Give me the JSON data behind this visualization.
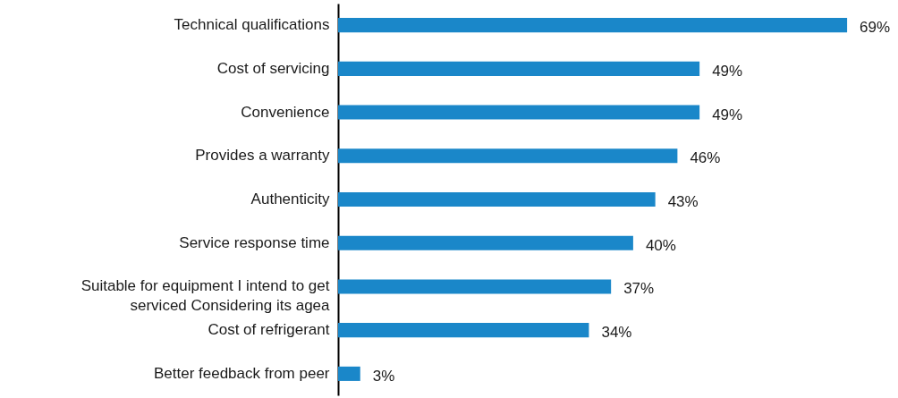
{
  "chart_data": {
    "type": "bar",
    "orientation": "horizontal",
    "categories": [
      "Technical qualifications",
      "Cost of servicing",
      "Convenience",
      "Provides a warranty",
      "Authenticity",
      "Service response time",
      "Suitable for equipment I intend to get serviced Considering its agea",
      "Cost of refrigerant",
      "Better feedback from peer"
    ],
    "values": [
      69,
      49,
      49,
      46,
      43,
      40,
      37,
      34,
      3
    ],
    "value_labels": [
      "69%",
      "49%",
      "49%",
      "46%",
      "43%",
      "40%",
      "37%",
      "34%",
      "3%"
    ],
    "color": "#1a87c9"
  }
}
